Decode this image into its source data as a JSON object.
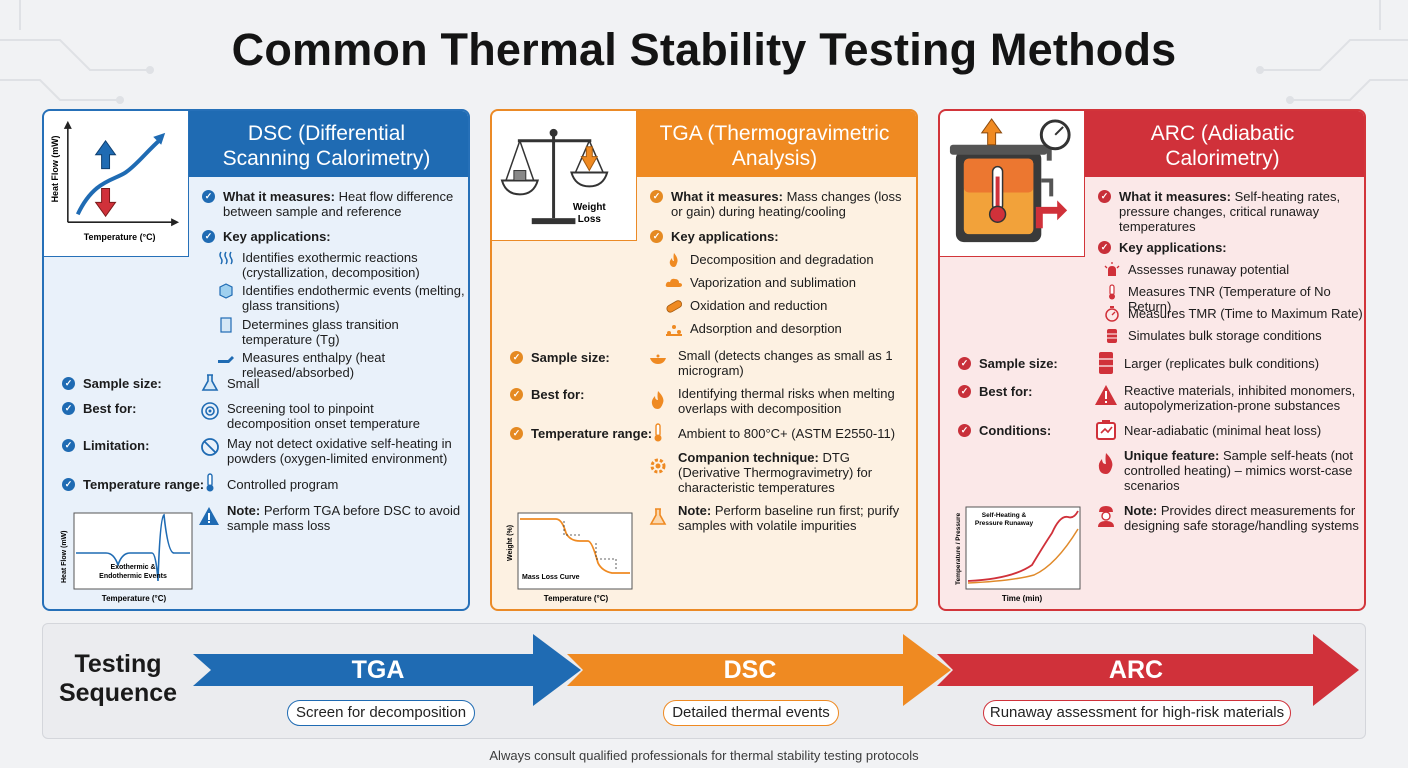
{
  "title": "Common Thermal Stability Testing Methods",
  "colors": {
    "dsc": "#1f6bb3",
    "tga": "#ef8a22",
    "arc": "#d0313a"
  },
  "dsc": {
    "title_line1": "DSC (Differential",
    "title_line2": "Scanning Calorimetry)",
    "ill": {
      "y_axis": "Heat Flow (mW)",
      "x_axis": "Temperature (°C)"
    },
    "measures_label": "What it measures:",
    "measures_text": " Heat flow difference between sample and reference",
    "apps_label": "Key applications:",
    "apps": [
      {
        "icon": "heat-waves-icon",
        "text": "Identifies exothermic reactions (crystallization, decomposition)"
      },
      {
        "icon": "ice-cube-icon",
        "text": "Identifies endothermic events (melting, glass transitions)"
      },
      {
        "icon": "glass-icon",
        "text": "Determines glass transition temperature (Tg)"
      },
      {
        "icon": "hand-heat-icon",
        "text": "Measures enthalpy (heat released/absorbed)"
      }
    ],
    "sample_label": "Sample size:",
    "sample_value": "Small",
    "best_label": "Best for:",
    "best_value": "Screening tool to pinpoint decomposition onset temperature",
    "limit_label": "Limitation:",
    "limit_value": "May not detect oxidative self-heating in powders (oxygen-limited environment)",
    "temp_label": "Temperature range:",
    "temp_value": "Controlled program",
    "note_label": "Note:",
    "note_text": " Perform TGA before DSC to avoid sample mass loss",
    "chart": {
      "ylabel": "Heat Flow (mW)",
      "xlabel": "Temperature (°C)",
      "annotation_line1": "Exothermic &",
      "annotation_line2": "Endothermic Events"
    }
  },
  "tga": {
    "title_line1": "TGA (Thermogravimetric",
    "title_line2": "Analysis)",
    "ill": {
      "label_line1": "Weight",
      "label_line2": "Loss"
    },
    "measures_label": "What it measures:",
    "measures_text": " Mass changes (loss or gain) during heating/cooling",
    "apps_label": "Key applications:",
    "apps": [
      {
        "icon": "flame-icon",
        "text": "Decomposition and degradation"
      },
      {
        "icon": "cloud-icon",
        "text": "Vaporization and sublimation"
      },
      {
        "icon": "capsule-icon",
        "text": "Oxidation and reduction"
      },
      {
        "icon": "particles-icon",
        "text": "Adsorption and desorption"
      }
    ],
    "sample_label": "Sample size:",
    "sample_value": "Small (detects changes as small as 1 microgram)",
    "best_label": "Best for:",
    "best_value": "Identifying thermal risks when melting overlaps with decomposition",
    "temp_label": "Temperature range:",
    "temp_value": "Ambient to 800°C+ (ASTM E2550-11)",
    "companion_label": "Companion technique:",
    "companion_text": " DTG (Derivative Thermogravimetry) for characteristic temperatures",
    "note_label": "Note:",
    "note_text": " Perform baseline run first; purify samples with volatile impurities",
    "chart": {
      "ylabel": "Weight (%)",
      "xlabel": "Temperature (°C)",
      "annotation": "Mass Loss Curve"
    }
  },
  "arc": {
    "title_line1": "ARC (Adiabatic",
    "title_line2": "Calorimetry)",
    "measures_label": "What it measures:",
    "measures_text": " Self-heating rates, pressure changes, critical runaway temperatures",
    "apps_label": "Key applications:",
    "apps": [
      {
        "icon": "alarm-icon",
        "text": "Assesses runaway potential"
      },
      {
        "icon": "thermometer-icon",
        "text": "Measures TNR (Temperature of No Return)"
      },
      {
        "icon": "stopwatch-icon",
        "text": "Measures TMR (Time to Maximum Rate)"
      },
      {
        "icon": "barrel-icon",
        "text": "Simulates bulk storage conditions"
      }
    ],
    "sample_label": "Sample size:",
    "sample_value": "Larger (replicates bulk conditions)",
    "best_label": "Best for:",
    "best_value": "Reactive materials, inhibited monomers, autopolymerization-prone substances",
    "cond_label": "Conditions:",
    "cond_value": "Near-adiabatic (minimal heat loss)",
    "unique_label": "Unique feature:",
    "unique_text": " Sample self-heats (not controlled heating) – mimics worst-case scenarios",
    "note_label": "Note:",
    "note_text": " Provides direct measurements for designing safe storage/handling systems",
    "chart": {
      "ylabel": "Temperature / Pressure",
      "xlabel": "Time (min)",
      "annotation_line1": "Self-Heating &",
      "annotation_line2": "Pressure Runaway"
    }
  },
  "sequence": {
    "title_line1": "Testing",
    "title_line2": "Sequence",
    "steps": [
      {
        "label": "TGA",
        "desc": "Screen for decomposition",
        "color": "#1f6bb3"
      },
      {
        "label": "DSC",
        "desc": "Detailed thermal events",
        "color": "#ef8a22"
      },
      {
        "label": "ARC",
        "desc": "Runaway assessment for high-risk materials",
        "color": "#d0313a"
      }
    ]
  },
  "footer": "Always consult qualified professionals for thermal stability testing protocols"
}
